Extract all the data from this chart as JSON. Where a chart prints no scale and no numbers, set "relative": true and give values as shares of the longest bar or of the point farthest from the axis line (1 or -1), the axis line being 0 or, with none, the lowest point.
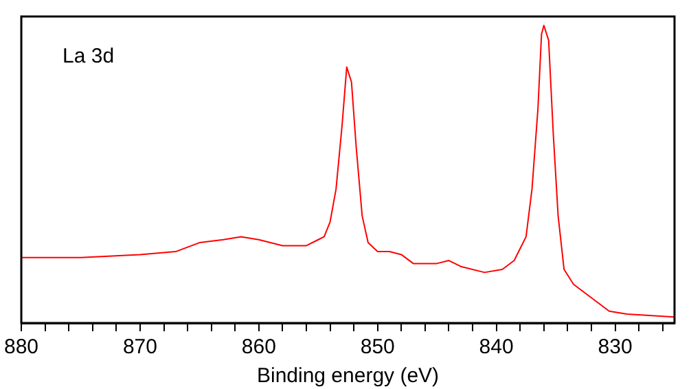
{
  "chart_data": {
    "type": "line",
    "xlabel": "Binding energy (eV)",
    "annotations": [
      "La 3d"
    ],
    "relative": true,
    "legend": false,
    "grid": false,
    "marker": "none",
    "line_style": "solid",
    "xlim": [
      880,
      825
    ],
    "xticks": [
      880,
      {
        "value": 878,
        "label": null
      },
      {
        "value": 876,
        "label": null
      },
      {
        "value": 874,
        "label": null
      },
      {
        "value": 872,
        "label": null
      },
      870,
      {
        "value": 868,
        "label": null
      },
      {
        "value": 866,
        "label": null
      },
      {
        "value": 864,
        "label": null
      },
      {
        "value": 862,
        "label": null
      },
      860,
      {
        "value": 858,
        "label": null
      },
      {
        "value": 856,
        "label": null
      },
      {
        "value": 854,
        "label": null
      },
      {
        "value": 852,
        "label": null
      },
      850,
      {
        "value": 848,
        "label": null
      },
      {
        "value": 846,
        "label": null
      },
      {
        "value": 844,
        "label": null
      },
      {
        "value": 842,
        "label": null
      },
      840,
      {
        "value": 838,
        "label": null
      },
      {
        "value": 836,
        "label": null
      },
      {
        "value": 834,
        "label": null
      },
      {
        "value": 832,
        "label": null
      },
      830,
      {
        "value": 828,
        "label": null
      },
      {
        "value": 826,
        "label": null
      }
    ],
    "series": [
      {
        "color": "#ff0000",
        "x": [
          880,
          875,
          870,
          867,
          865,
          863,
          861.5,
          860,
          858,
          856,
          855,
          854.5,
          854,
          853.5,
          853,
          852.6,
          852.2,
          851.8,
          851.3,
          850.8,
          850,
          849,
          848,
          847,
          845,
          844,
          843,
          841,
          839.5,
          838.5,
          837.5,
          837,
          836.5,
          836.2,
          836,
          835.6,
          835.2,
          834.8,
          834.3,
          833.5,
          832.5,
          831.5,
          830.5,
          829,
          825
        ],
        "values": [
          0.22,
          0.22,
          0.23,
          0.24,
          0.27,
          0.28,
          0.29,
          0.28,
          0.26,
          0.26,
          0.28,
          0.29,
          0.34,
          0.45,
          0.66,
          0.86,
          0.81,
          0.59,
          0.36,
          0.27,
          0.24,
          0.24,
          0.23,
          0.2,
          0.2,
          0.21,
          0.19,
          0.17,
          0.18,
          0.21,
          0.29,
          0.45,
          0.72,
          0.97,
          1,
          0.95,
          0.63,
          0.36,
          0.18,
          0.13,
          0.1,
          0.07,
          0.04,
          0.03,
          0.02
        ]
      }
    ]
  }
}
